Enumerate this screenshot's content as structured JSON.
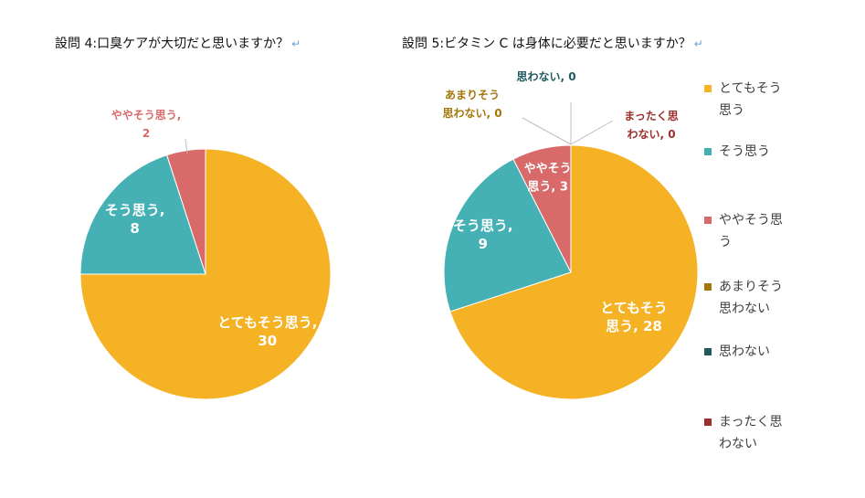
{
  "return_mark": "↵",
  "chart_data": [
    {
      "type": "pie",
      "title": "設問 4:口臭ケアが大切だと思いますか？",
      "categories": [
        "とてもそう思う",
        "そう思う",
        "ややそう思う"
      ],
      "values": [
        30,
        8,
        2
      ],
      "colors": [
        "#F4B224",
        "#45B1B5",
        "#D86A6A"
      ],
      "labels": [
        {
          "lines": [
            "とてもそう思う,",
            "30"
          ]
        },
        {
          "lines": [
            "そう思う,",
            "8"
          ]
        },
        {
          "lines": [
            "ややそう思う,",
            "2"
          ]
        }
      ]
    },
    {
      "type": "pie",
      "title": "設問 5:ビタミン C は身体に必要だと思いますか？",
      "categories": [
        "とてもそう思う",
        "そう思う",
        "ややそう思う",
        "あまりそう思わない",
        "思わない",
        "まったく思わない"
      ],
      "values": [
        28,
        9,
        3,
        0,
        0,
        0
      ],
      "colors": [
        "#F4B224",
        "#45B1B5",
        "#D86A6A",
        "#A5760A",
        "#1F5B5E",
        "#9B2F2B"
      ],
      "labels": [
        {
          "lines": [
            "とてもそう",
            "思う, 28"
          ]
        },
        {
          "lines": [
            "そう思う,",
            "9"
          ]
        },
        {
          "lines": [
            "ややそう",
            "思う, 3"
          ]
        },
        {
          "lines": [
            "あまりそう",
            "思わない, 0"
          ]
        },
        {
          "lines": [
            "思わない, 0"
          ]
        },
        {
          "lines": [
            "まったく思",
            "わない, 0"
          ]
        }
      ],
      "legend": {
        "position": "right",
        "items": [
          {
            "lines": [
              "とてもそう",
              "思う"
            ]
          },
          {
            "lines": [
              "そう思う"
            ]
          },
          {
            "lines": [
              "ややそう思",
              "う"
            ]
          },
          {
            "lines": [
              "あまりそう",
              "思わない"
            ]
          },
          {
            "lines": [
              "思わない"
            ]
          },
          {
            "lines": [
              "まったく思",
              "わない"
            ]
          }
        ]
      }
    }
  ]
}
